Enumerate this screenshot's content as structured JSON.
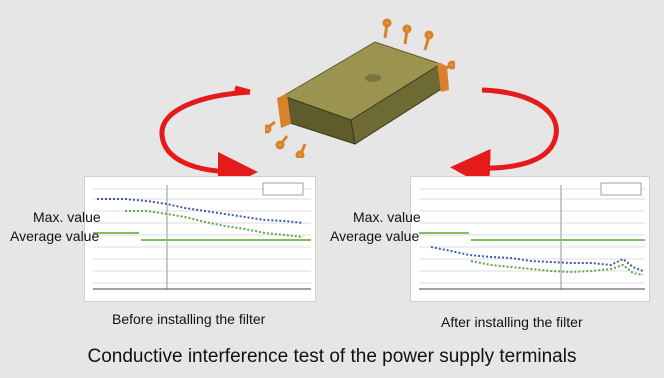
{
  "before": {
    "max_label": "Max. value",
    "avg_label": "Average value",
    "caption": "Before installing the filter"
  },
  "after": {
    "max_label": "Max. value",
    "avg_label": "Average value",
    "caption": "After installing the filter"
  },
  "title": "Conductive interference test of the power supply terminals",
  "colors": {
    "arrow": "#e51b1b",
    "limit_line": "#7fc05a",
    "max_trace": "#3a5db0",
    "avg_trace": "#5aa84a",
    "device_body": "#8a8a3a",
    "terminal": "#d9822b"
  }
}
